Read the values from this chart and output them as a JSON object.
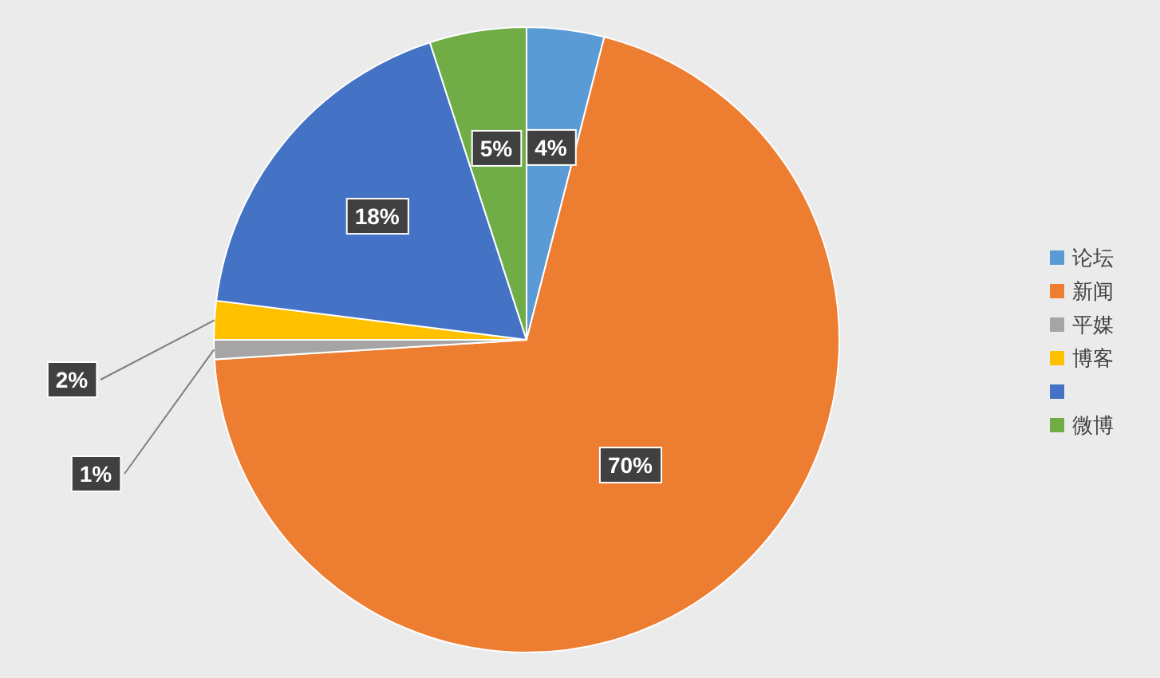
{
  "chart_data": {
    "type": "pie",
    "categories": [
      "论坛",
      "新闻",
      "平媒",
      "博客",
      null,
      "微博"
    ],
    "values": [
      4,
      70,
      1,
      2,
      18,
      5
    ],
    "value_labels": [
      "4%",
      "70%",
      "1%",
      "2%",
      "18%",
      "5%"
    ],
    "colors": [
      "#5b9bd5",
      "#ed7d31",
      "#a5a5a5",
      "#ffc000",
      "#4472c4",
      "#70ad47"
    ],
    "legend": "right"
  }
}
